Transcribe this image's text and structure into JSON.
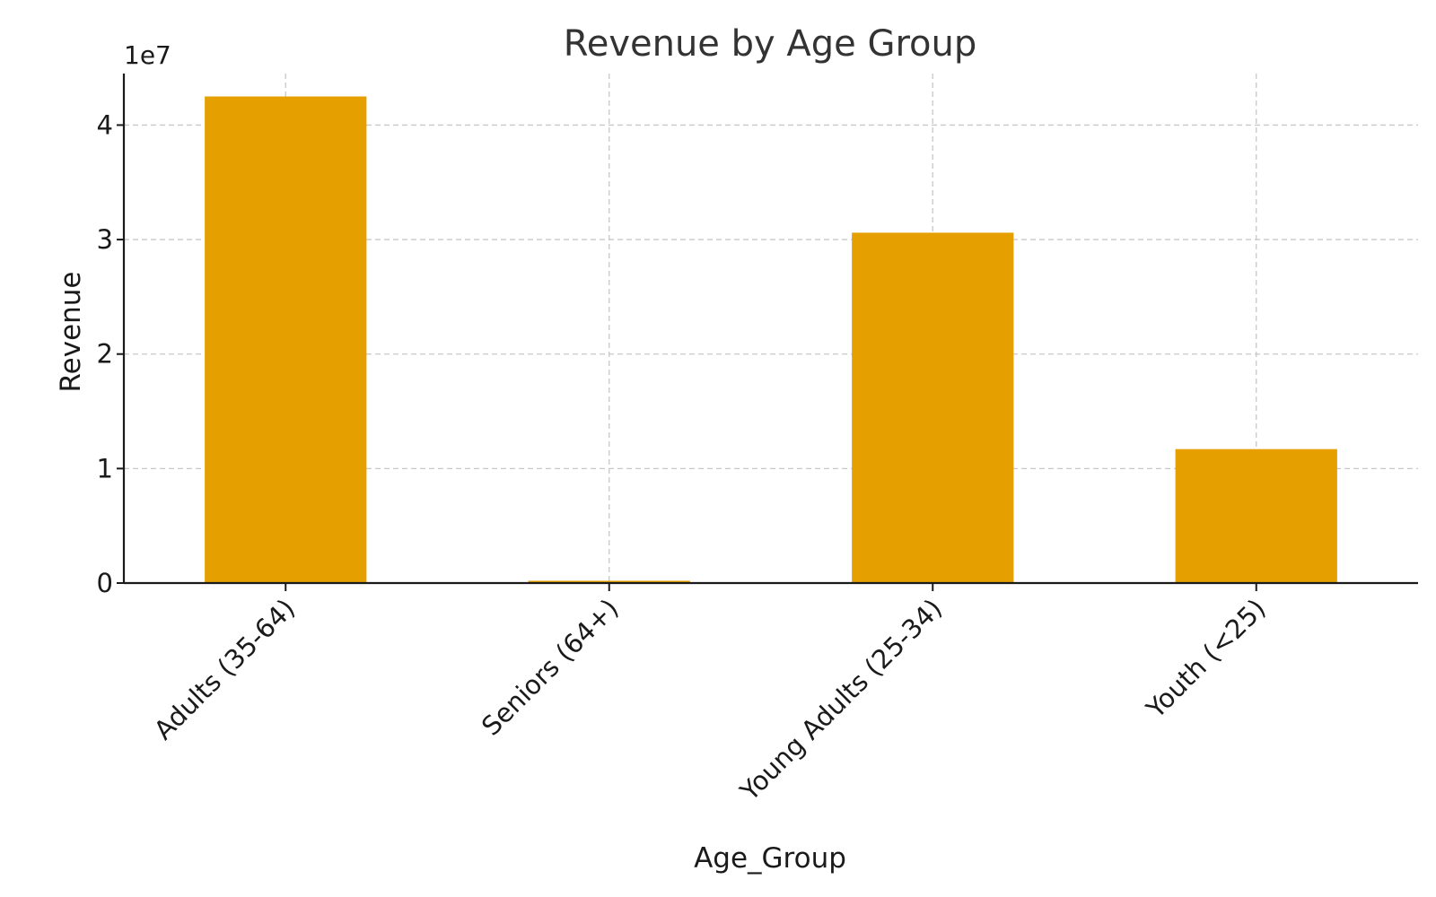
{
  "chart_data": {
    "type": "bar",
    "title": "Revenue by Age Group",
    "xlabel": "Age_Group",
    "ylabel": "Revenue",
    "y_scale_label": "1e7",
    "y_multiplier": 10000000,
    "categories": [
      "Adults (35-64)",
      "Seniors (64+)",
      "Young Adults (25-34)",
      "Youth (<25)"
    ],
    "values": [
      42500000,
      200000,
      30600000,
      11700000
    ],
    "ylim": [
      0,
      44500000
    ],
    "yticks": [
      0,
      10000000,
      20000000,
      30000000,
      40000000
    ],
    "ytick_labels": [
      "0",
      "1",
      "2",
      "3",
      "4"
    ],
    "bar_color": "#E5A000",
    "grid": true
  }
}
